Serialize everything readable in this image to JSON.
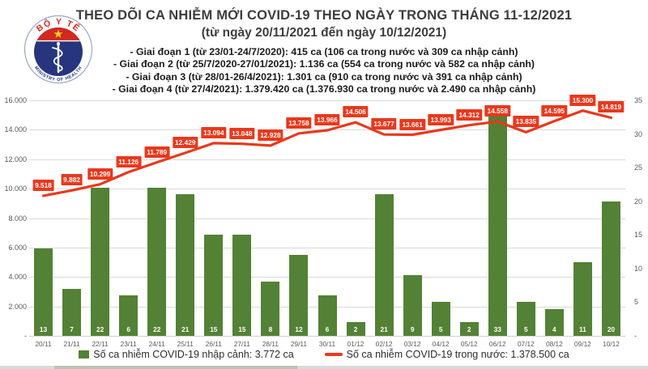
{
  "logo": {
    "top_text": "BỘ Y TẾ",
    "bottom_text": "MINISTRY OF HEALTH"
  },
  "header": {
    "title": "THEO DÕI CA NHIỄM MỚI COVID-19 THEO NGÀY TRONG THÁNG 11-12/2021",
    "subtitle": "(từ ngày 20/11/2021 đến ngày 10/12/2021)"
  },
  "phases": [
    "- Giai đoạn 1 (từ 23/01-24/7/2020): 415 ca (106 ca trong nước và 309 ca nhập cảnh)",
    "- Giai đoạn 2 (từ 25/7/2020-27/01/2021): 1.136 ca (554 ca trong nước và 582 ca nhập cảnh)",
    "- Giai đoạn 3 (từ 28/01-26/4/2021): 1.301 ca (910 ca trong nước và 391 ca nhập cảnh)",
    "- Giai đoạn 4 (từ 27/4/2021): 1.379.420 ca (1.376.930 ca trong nước và 2.490 ca nhập cảnh)"
  ],
  "legend": {
    "bar_label": "Số ca nhiễm COVID-19 nhập cảnh: 3.772 ca",
    "line_label": "Số ca nhiễm COVID-19 trong nước: 1.378.500 ca"
  },
  "colors": {
    "bar_green": "#538135",
    "line_red": "#e8391d",
    "grid": "#d9d9d9",
    "axis_text": "#595959",
    "logo_red": "#d2291f",
    "logo_blue": "#26357e",
    "star_yellow": "#f7d32a"
  },
  "chart_data": {
    "type": "combo",
    "title": "THEO DÕI CA NHIỄM MỚI COVID-19 THEO NGÀY TRONG THÁNG 11-12/2021",
    "categories": [
      "20/11",
      "21/11",
      "22/11",
      "23/11",
      "24/11",
      "25/11",
      "26/11",
      "27/11",
      "28/11",
      "29/11",
      "30/11",
      "01/12",
      "02/12",
      "03/12",
      "04/12",
      "05/12",
      "06/12",
      "07/12",
      "08/12",
      "09/12",
      "10/12"
    ],
    "series": [
      {
        "name": "Số ca nhiễm COVID-19 nhập cảnh",
        "type": "bar",
        "axis": "right",
        "color": "#538135",
        "values": [
          13,
          7,
          22,
          6,
          22,
          21,
          15,
          15,
          8,
          12,
          6,
          2,
          21,
          9,
          5,
          2,
          33,
          5,
          4,
          11,
          20
        ]
      },
      {
        "name": "Số ca nhiễm COVID-19 trong nước",
        "type": "line",
        "axis": "left",
        "color": "#e8391d",
        "values": [
          9518,
          9882,
          10299,
          11126,
          11789,
          12429,
          13094,
          13048,
          12928,
          13758,
          13966,
          14506,
          13677,
          13661,
          13993,
          14312,
          14558,
          13835,
          14595,
          15300,
          14819
        ],
        "labels": [
          "9.518",
          "9.882",
          "10.299",
          "11.126",
          "11.789",
          "12.429",
          "13.094",
          "13.048",
          "12.928",
          "13.758",
          "13.966",
          "14.506",
          "13.677",
          "13.661",
          "13.993",
          "14.312",
          "14.558",
          "13.835",
          "14.595",
          "15.300",
          "14.819"
        ]
      }
    ],
    "left_axis": {
      "max": 16000,
      "step": 2000,
      "ticks": [
        "16.000",
        "14.000",
        "12.000",
        "10.000",
        "8.000",
        "6.000",
        "4.000",
        "2.000",
        "-"
      ]
    },
    "right_axis": {
      "max": 35,
      "step": 5,
      "ticks": [
        "35",
        "30",
        "25",
        "20",
        "15",
        "10",
        "5",
        "-"
      ]
    },
    "grid": true,
    "legend_position": "bottom"
  }
}
